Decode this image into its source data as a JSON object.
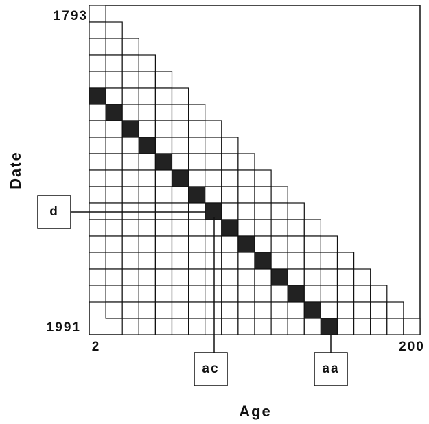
{
  "axes": {
    "y_label": "Date",
    "y_top": "1793",
    "y_bottom": "1991",
    "x_label": "Age",
    "x_left": "2",
    "x_right": "200"
  },
  "boxes": [
    {
      "label": "d"
    },
    {
      "label": "ac"
    },
    {
      "label": "aa"
    }
  ]
}
